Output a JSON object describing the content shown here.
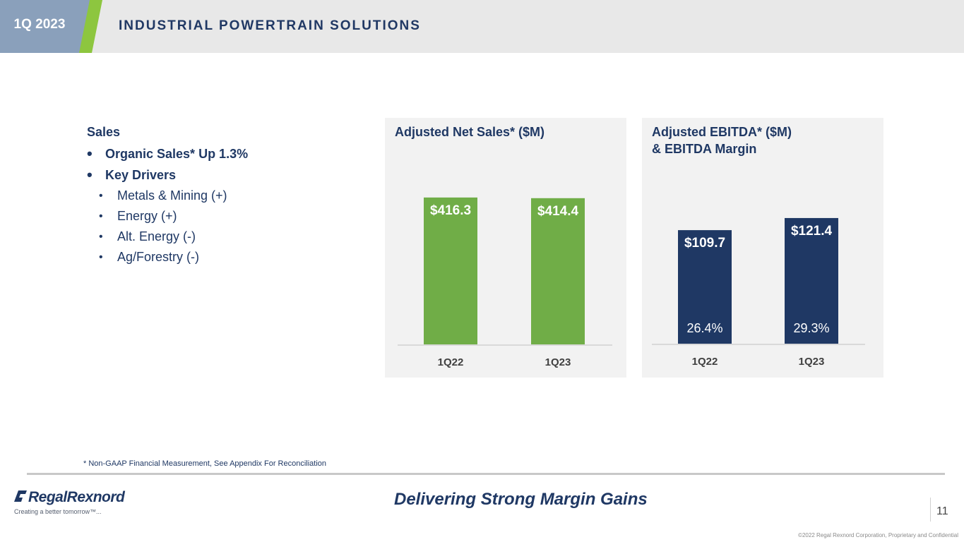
{
  "header": {
    "quarter": "1Q 2023",
    "title": "INDUSTRIAL POWERTRAIN SOLUTIONS",
    "colors": {
      "quarter_bg": "#8aa0bb",
      "accent_green": "#8dc63f"
    }
  },
  "sales": {
    "heading": "Sales",
    "primary_bullets": [
      "Organic Sales* Up 1.3%",
      "Key Drivers"
    ],
    "drivers": [
      "Metals & Mining (+)",
      "Energy (+)",
      "Alt. Energy (-)",
      "Ag/Forestry (-)"
    ]
  },
  "chart_data": [
    {
      "type": "bar",
      "title": "Adjusted Net Sales* ($M)",
      "categories": [
        "1Q22",
        "1Q23"
      ],
      "values": [
        416.3,
        414.4
      ],
      "value_labels": [
        "$416.3",
        "$414.4"
      ],
      "color": "#70ad47",
      "ylim": [
        0,
        450
      ]
    },
    {
      "type": "bar",
      "title": "Adjusted EBITDA* ($M)",
      "title_line2": "& EBITDA Margin",
      "categories": [
        "1Q22",
        "1Q23"
      ],
      "values": [
        109.7,
        121.4
      ],
      "value_labels": [
        "$109.7",
        "$121.4"
      ],
      "margins": [
        "26.4%",
        "29.3%"
      ],
      "color": "#1f3864",
      "ylim": [
        0,
        180
      ]
    }
  ],
  "footer": {
    "footnote": "* Non-GAAP Financial Measurement, See Appendix For Reconciliation",
    "logo_text": "RegalRexnord",
    "logo_tagline": "Creating a better tomorrow™...",
    "tagline": "Delivering Strong Margin Gains",
    "page_number": "11",
    "copyright": "©2022 Regal Rexnord Corporation, Proprietary and Confidential"
  }
}
